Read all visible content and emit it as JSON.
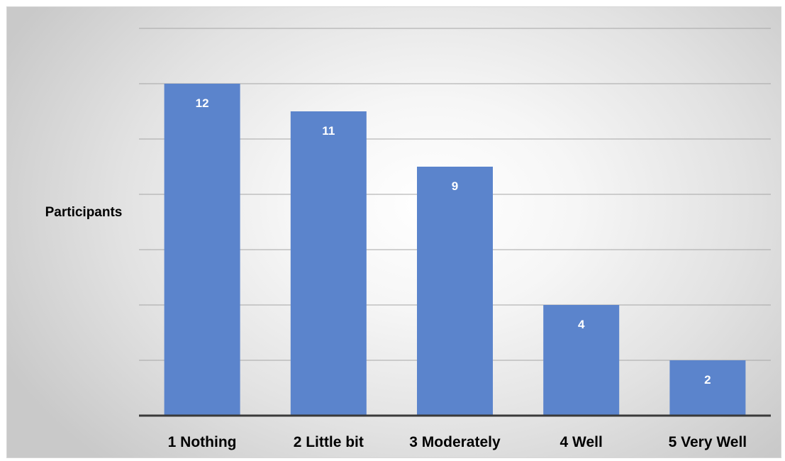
{
  "chart_data": {
    "type": "bar",
    "title": "",
    "xlabel": "",
    "ylabel": "Participants",
    "categories": [
      "1 Nothing",
      "2  Little bit",
      "3 Moderately",
      "4  Well",
      "5 Very Well"
    ],
    "values": [
      12,
      11,
      9,
      4,
      2
    ],
    "ylim": [
      0,
      14
    ],
    "y_gridline_step": 2,
    "y_tick_labels_shown": false,
    "grid": true,
    "legend": "none",
    "data_labels": "inside-top",
    "colors": {
      "bar": "#5b84cc",
      "grid": "#a6a6a6",
      "axis": "#3a3a3a",
      "label": "#000000",
      "data_label": "#ffffff"
    }
  }
}
